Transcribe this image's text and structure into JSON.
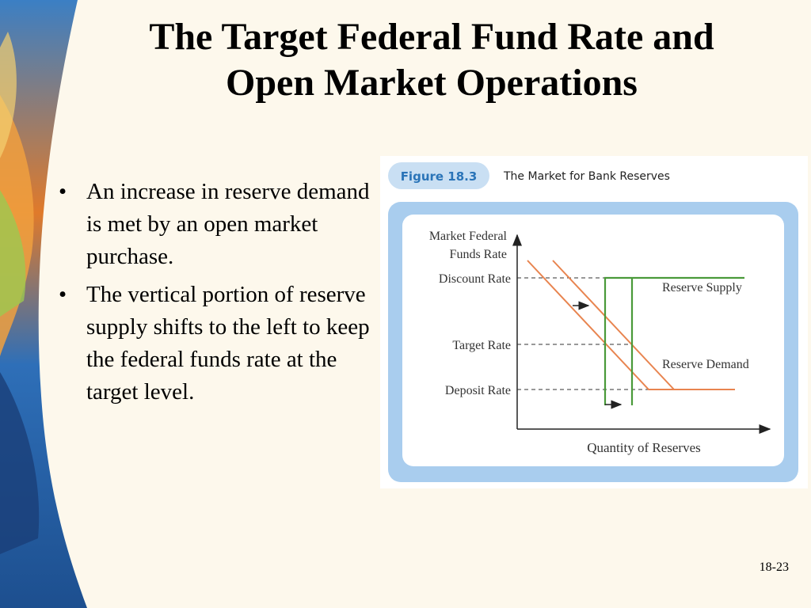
{
  "slide": {
    "title_lines": [
      "The Target Federal Fund Rate and",
      "Open Market Operations"
    ],
    "bullets": [
      "An increase in reserve demand is met by an open market purchase.",
      "The vertical portion of reserve supply shifts to the left to keep the federal funds rate at the target level."
    ],
    "bullet_glyph": "•",
    "page_number": "18-23"
  },
  "figure": {
    "badge": "Figure 18.3",
    "caption": "The Market for Bank Reserves",
    "y_axis_label_lines": [
      "Market Federal",
      "Funds Rate"
    ],
    "x_axis_label": "Quantity of Reserves",
    "rate_labels": {
      "discount": "Discount Rate",
      "target": "Target Rate",
      "deposit": "Deposit Rate"
    },
    "curve_labels": {
      "supply": "Reserve Supply",
      "demand": "Reserve Demand"
    },
    "colors": {
      "supply": "#4a9a3a",
      "demand": "#e8844f",
      "badge_bg": "#c9dff3",
      "panel_bg": "#a9cdee",
      "badge_text": "#2a74b8"
    }
  }
}
